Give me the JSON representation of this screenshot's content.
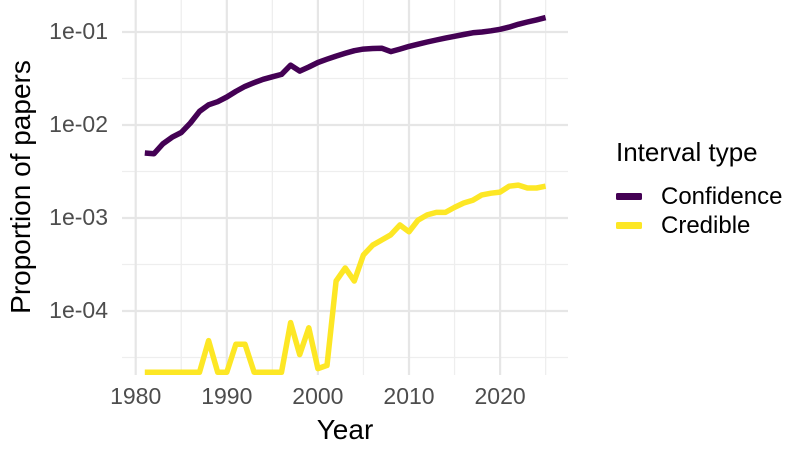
{
  "figure": {
    "background": "#ffffff",
    "grid_major_color": "#e6e6e6",
    "grid_minor_color": "#eeeeee",
    "tick_text_color": "#4d4d4d",
    "title_text_color": "#000000"
  },
  "legend": {
    "title": "Interval type",
    "items": [
      {
        "label": "Confidence",
        "color": "#440154"
      },
      {
        "label": "Credible",
        "color": "#FDE725"
      }
    ]
  },
  "axes": {
    "x": {
      "title": "Year",
      "tick_labels": [
        "1980",
        "1990",
        "2000",
        "2010",
        "2020"
      ],
      "tick_values": [
        1980,
        1990,
        2000,
        2010,
        2020
      ],
      "minor_values": [
        1985,
        1995,
        2005,
        2015,
        2025
      ]
    },
    "y": {
      "title": "Proportion of papers",
      "scale": "log10",
      "tick_labels": [
        "1e-01",
        "1e-02",
        "1e-03",
        "1e-04"
      ],
      "tick_values": [
        0.1,
        0.01,
        0.001,
        0.0001
      ],
      "minor_values": [
        0.0316,
        0.00316,
        0.000316,
        3.16e-05
      ]
    }
  },
  "chart_data": {
    "type": "line",
    "title": "",
    "xlabel": "Year",
    "ylabel": "Proportion of papers",
    "yscale": "log",
    "xlim": [
      1978.5,
      2027.3
    ],
    "ylim": [
      2.05e-05,
      0.22
    ],
    "grid": true,
    "legend_position": "right",
    "x": [
      1981,
      1982,
      1983,
      1984,
      1985,
      1986,
      1987,
      1988,
      1989,
      1990,
      1991,
      1992,
      1993,
      1994,
      1995,
      1996,
      1997,
      1998,
      1999,
      2000,
      2001,
      2002,
      2003,
      2004,
      2005,
      2006,
      2007,
      2008,
      2009,
      2010,
      2011,
      2012,
      2013,
      2014,
      2015,
      2016,
      2017,
      2018,
      2019,
      2020,
      2021,
      2022,
      2023,
      2024,
      2025
    ],
    "series": [
      {
        "name": "Confidence",
        "color": "#440154",
        "values": [
          0.005,
          0.0049,
          0.0063,
          0.0074,
          0.0083,
          0.0105,
          0.014,
          0.0165,
          0.0178,
          0.02,
          0.023,
          0.026,
          0.0285,
          0.031,
          0.033,
          0.035,
          0.044,
          0.038,
          0.042,
          0.047,
          0.051,
          0.055,
          0.059,
          0.063,
          0.0655,
          0.0665,
          0.067,
          0.0615,
          0.0655,
          0.07,
          0.074,
          0.078,
          0.082,
          0.086,
          0.09,
          0.094,
          0.098,
          0.1,
          0.103,
          0.107,
          0.113,
          0.121,
          0.128,
          0.135,
          0.143
        ]
      },
      {
        "name": "Credible",
        "color": "#FDE725",
        "values": [
          2.2e-05,
          2.2e-05,
          2.2e-05,
          2.2e-05,
          2.2e-05,
          2.2e-05,
          2.2e-05,
          4.8e-05,
          2.2e-05,
          2.2e-05,
          4.4e-05,
          4.4e-05,
          2.2e-05,
          2.2e-05,
          2.2e-05,
          2.2e-05,
          7.5e-05,
          3.4e-05,
          6.6e-05,
          2.4e-05,
          2.6e-05,
          0.00021,
          0.00029,
          0.00021,
          0.0004,
          0.00051,
          0.00058,
          0.00066,
          0.00084,
          0.00071,
          0.00095,
          0.00108,
          0.00115,
          0.00115,
          0.0013,
          0.00145,
          0.00155,
          0.00177,
          0.00185,
          0.0019,
          0.0022,
          0.00226,
          0.0021,
          0.0021,
          0.0022
        ]
      }
    ]
  }
}
